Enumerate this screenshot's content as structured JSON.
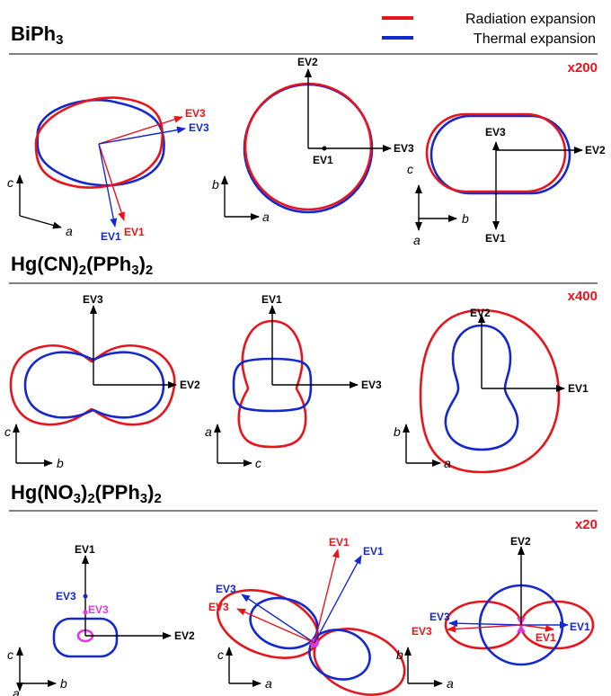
{
  "legend": {
    "radiation": "Radiation expansion",
    "thermal": "Thermal expansion",
    "radiation_color": "#e8141b",
    "thermal_color": "#1428d0"
  },
  "sections": [
    {
      "title_main": "BiPh",
      "title_sub": "3",
      "scale": "x200"
    },
    {
      "title_parts": [
        "Hg(CN)",
        "2",
        "(PPh",
        "3",
        ")",
        "2"
      ],
      "scale": "x400"
    },
    {
      "title_parts": [
        "Hg(NO",
        "3",
        ")",
        "2",
        "(PPh",
        "3",
        ")",
        "2"
      ],
      "scale": "x20"
    }
  ],
  "labels": {
    "ev1": "EV1",
    "ev2": "EV2",
    "ev3": "EV3",
    "a": "a",
    "b": "b",
    "c": "c"
  },
  "colors": {
    "highlight": "#e436e0"
  }
}
